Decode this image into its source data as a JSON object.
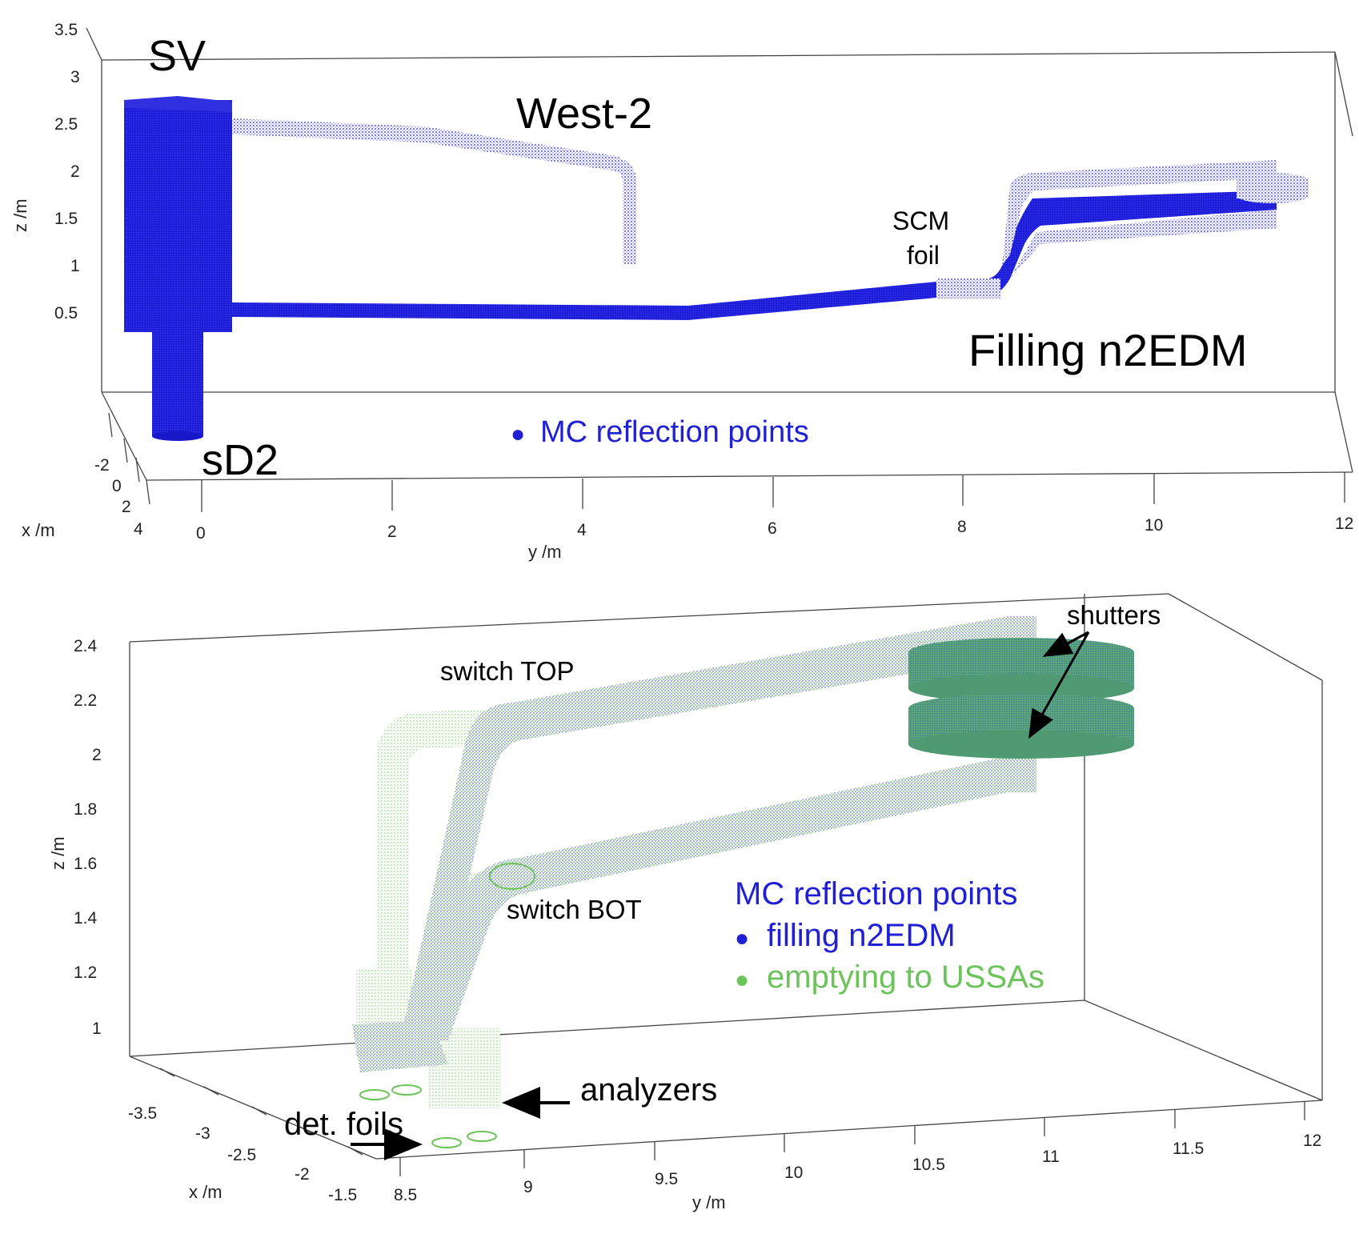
{
  "top": {
    "labels": {
      "sv": "SV",
      "west2": "West-2",
      "sd2": "sD2",
      "scm": "SCM",
      "foil": "foil",
      "filling": "Filling n2EDM"
    },
    "legend": {
      "marker": "●",
      "text": "MC reflection points"
    },
    "z_axis": {
      "label": "z /m",
      "ticks": [
        "3.5",
        "3",
        "2.5",
        "2",
        "1.5",
        "1",
        "0.5"
      ]
    },
    "y_axis": {
      "label": "y /m",
      "ticks": [
        "0",
        "2",
        "4",
        "6",
        "8",
        "10",
        "12"
      ]
    },
    "x_axis": {
      "label": "x /m",
      "ticks": [
        "-2",
        "0",
        "2",
        "4"
      ]
    }
  },
  "bottom": {
    "labels": {
      "switch_top": "switch TOP",
      "switch_bot": "switch BOT",
      "shutters": "shutters",
      "analyzers": "analyzers",
      "det_foils": "det. foils"
    },
    "legend": {
      "title": "MC reflection points",
      "marker": "●",
      "item1": "filling n2EDM",
      "item2": "emptying to USSAs"
    },
    "z_axis": {
      "label": "z /m",
      "ticks": [
        "2.4",
        "2.2",
        "2",
        "1.8",
        "1.6",
        "1.4",
        "1.2",
        "1"
      ]
    },
    "y_axis": {
      "label": "y /m",
      "ticks": [
        "8.5",
        "9",
        "9.5",
        "10",
        "10.5",
        "11",
        "11.5",
        "12"
      ]
    },
    "x_axis": {
      "label": "x /m",
      "ticks": [
        "-3.5",
        "-3",
        "-2.5",
        "-2",
        "-1.5"
      ]
    }
  },
  "colors": {
    "blue": "#1f1fd6",
    "green": "#6cc35a",
    "frame": "#444444"
  }
}
